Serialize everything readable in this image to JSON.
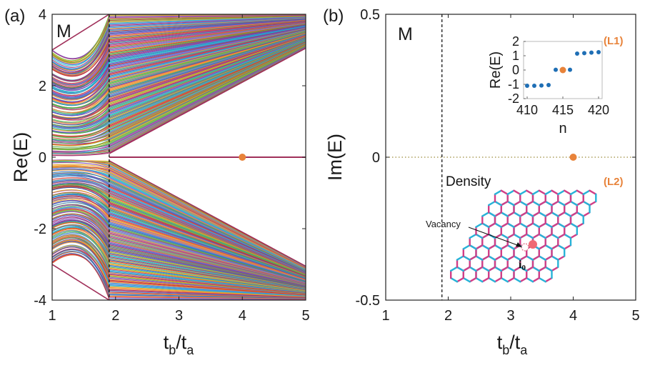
{
  "chart_data": [
    {
      "panel": "(a)",
      "type": "line",
      "annotation": "M",
      "ylabel": "Re(E)",
      "xlabel_base": "t",
      "xlabel_sub1": "b",
      "xlabel_slash": "/t",
      "xlabel_sub2": "a",
      "xlim": [
        1,
        5
      ],
      "ylim": [
        -4,
        4
      ],
      "xticks": [
        "1",
        "2",
        "3",
        "4",
        "5"
      ],
      "yticks": [
        "-4",
        "-2",
        "0",
        "2",
        "4"
      ],
      "vline_x": 1.9,
      "zero_mode_line": {
        "x": [
          1.9,
          5
        ],
        "y": [
          0,
          0
        ],
        "color": "#a0305a"
      },
      "band_edges": {
        "upper_outer": {
          "x": [
            1,
            1.9,
            5
          ],
          "y": [
            3,
            4,
            4
          ]
        },
        "upper_inner": {
          "x": [
            1.9,
            5
          ],
          "y": [
            0.1,
            3.05
          ]
        },
        "lower_inner": {
          "x": [
            1.9,
            5
          ],
          "y": [
            -0.1,
            -3.05
          ]
        },
        "lower_outer": {
          "x": [
            1,
            1.9,
            5
          ],
          "y": [
            -3,
            -4,
            -4
          ]
        }
      },
      "marker": {
        "x": 4,
        "y": 0,
        "color": "#e8833a"
      }
    },
    {
      "panel": "(b)",
      "type": "scatter",
      "annotation": "M",
      "ylabel": "Im(E)",
      "xlabel_base": "t",
      "xlabel_sub1": "b",
      "xlabel_slash": "/t",
      "xlabel_sub2": "a",
      "xlim": [
        1,
        5
      ],
      "ylim": [
        -0.5,
        0.5
      ],
      "xticks": [
        "1",
        "2",
        "3",
        "4",
        "5"
      ],
      "yticks": [
        "-0.5",
        "0",
        "0.5"
      ],
      "vline_x": 1.9,
      "zero_line": {
        "y": 0,
        "style": "dotted",
        "color": "#9b8a3a"
      },
      "marker": {
        "x": 4,
        "y": 0,
        "color": "#e8833a"
      },
      "density_label": "Density",
      "lattice_label": "(L2)",
      "vacancy_label": "Vacancy",
      "site_label": "i",
      "site_sub": "0",
      "inset": {
        "label": "(L1)",
        "ylabel": "Re(E)",
        "xlabel": "n",
        "xlim": [
          409.5,
          420.5
        ],
        "ylim": [
          -2,
          2
        ],
        "xticks": [
          "410",
          "415",
          "420"
        ],
        "yticks": [
          "-2",
          "-1",
          "0",
          "1",
          "2"
        ],
        "points": [
          {
            "n": 410,
            "e": -1.1
          },
          {
            "n": 411,
            "e": -1.1
          },
          {
            "n": 412,
            "e": -1.08
          },
          {
            "n": 413,
            "e": -1.05
          },
          {
            "n": 414,
            "e": 0.02
          },
          {
            "n": 415,
            "e": 0.0
          },
          {
            "n": 416,
            "e": 0.02
          },
          {
            "n": 417,
            "e": 1.15
          },
          {
            "n": 418,
            "e": 1.18
          },
          {
            "n": 419,
            "e": 1.22
          },
          {
            "n": 420,
            "e": 1.25
          }
        ],
        "highlight_n": 415,
        "point_color": "#1f6fb5",
        "highlight_color": "#e8833a"
      }
    }
  ]
}
